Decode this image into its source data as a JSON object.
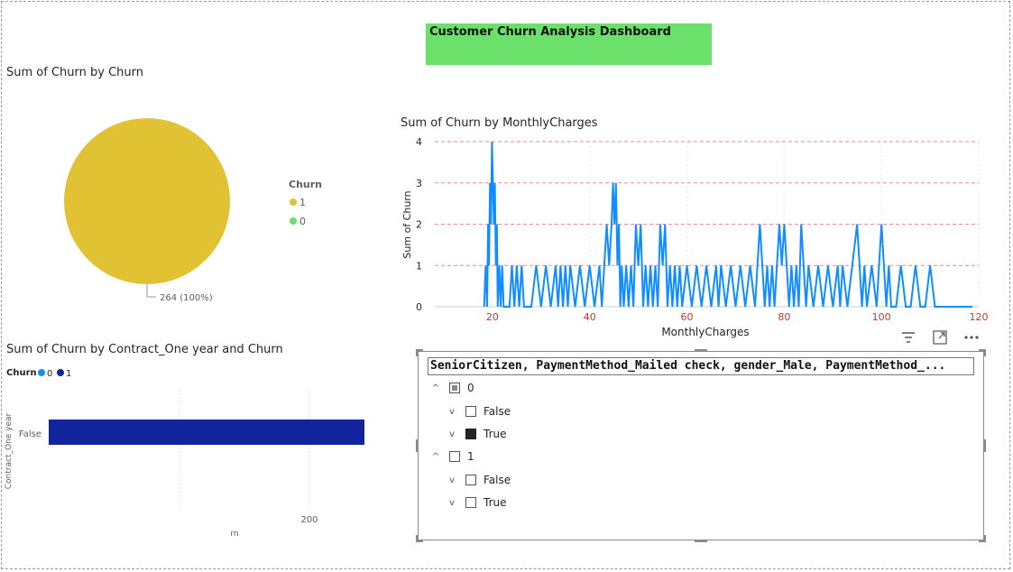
{
  "dashboard": {
    "title": "Customer Churn Analysis Dashboard",
    "title_bg": "#6be16b"
  },
  "pie": {
    "title": "Sum of Churn by Churn",
    "slice_label": "264 (100%)",
    "legend_title": "Churn",
    "legend": [
      {
        "label": "1",
        "color": "#e1c233"
      },
      {
        "label": "0",
        "color": "#6be16b"
      }
    ]
  },
  "line": {
    "title": "Sum of Churn by MonthlyCharges",
    "xlabel": "MonthlyCharges",
    "ylabel": "Sum of Churn",
    "color": "#118dff"
  },
  "bar": {
    "title": "Sum of Churn by Contract_One year and Churn",
    "legend_title": "Churn",
    "legend": [
      {
        "label": "0",
        "color": "#118dff"
      },
      {
        "label": "1",
        "color": "#12239e"
      }
    ],
    "category_axis_label": "Contract_One year",
    "value_axis_label": "rn",
    "tick_200": "200"
  },
  "slicer": {
    "header": "SeniorCitizen, PaymentMethod_Mailed check, gender_Male, PaymentMethod_...",
    "nodes": [
      {
        "label": "0",
        "level": 0,
        "expander": "^",
        "state": "partial"
      },
      {
        "label": "False",
        "level": 1,
        "expander": "v",
        "state": "unchecked"
      },
      {
        "label": "True",
        "level": 1,
        "expander": "v",
        "state": "checked"
      },
      {
        "label": "1",
        "level": 0,
        "expander": "^",
        "state": "unchecked"
      },
      {
        "label": "False",
        "level": 1,
        "expander": "v",
        "state": "unchecked"
      },
      {
        "label": "True",
        "level": 1,
        "expander": "v",
        "state": "unchecked"
      }
    ]
  },
  "chart_data": [
    {
      "type": "pie",
      "title": "Sum of Churn by Churn",
      "slices": [
        {
          "label": "1",
          "value": 264,
          "percent": 100,
          "color": "#e1c233"
        },
        {
          "label": "0",
          "value": 0,
          "percent": 0,
          "color": "#6be16b"
        }
      ],
      "legend_title": "Churn",
      "legend_position": "right"
    },
    {
      "type": "line",
      "title": "Sum of Churn by MonthlyCharges",
      "xlabel": "MonthlyCharges",
      "ylabel": "Sum of Churn",
      "xlim": [
        10,
        120
      ],
      "ylim": [
        0,
        4
      ],
      "x_ticks": [
        20,
        40,
        60,
        80,
        100,
        120
      ],
      "y_ticks": [
        0,
        1,
        2,
        3,
        4
      ],
      "grid": true,
      "series": [
        {
          "color": "#118dff",
          "points": [
            [
              18.3,
              0
            ],
            [
              18.6,
              1
            ],
            [
              18.9,
              0
            ],
            [
              19.1,
              2
            ],
            [
              19.3,
              1
            ],
            [
              19.5,
              3
            ],
            [
              19.7,
              2
            ],
            [
              19.9,
              4
            ],
            [
              20.1,
              3
            ],
            [
              20.3,
              2
            ],
            [
              20.5,
              3
            ],
            [
              20.7,
              1
            ],
            [
              20.9,
              2
            ],
            [
              21.1,
              0
            ],
            [
              21.4,
              1
            ],
            [
              21.7,
              0
            ],
            [
              22.0,
              1
            ],
            [
              22.3,
              0
            ],
            [
              23.5,
              0
            ],
            [
              24.0,
              1
            ],
            [
              24.5,
              0
            ],
            [
              25.0,
              1
            ],
            [
              25.5,
              0
            ],
            [
              26.0,
              1
            ],
            [
              26.5,
              0
            ],
            [
              28.0,
              0
            ],
            [
              29.0,
              1
            ],
            [
              30.0,
              0
            ],
            [
              31.0,
              1
            ],
            [
              32.0,
              0
            ],
            [
              33.0,
              1
            ],
            [
              33.5,
              0
            ],
            [
              34.0,
              1
            ],
            [
              34.5,
              0
            ],
            [
              35.0,
              1
            ],
            [
              35.5,
              0
            ],
            [
              36.0,
              1
            ],
            [
              37.0,
              0
            ],
            [
              38.0,
              1
            ],
            [
              39.0,
              0
            ],
            [
              40.0,
              1
            ],
            [
              41.0,
              0
            ],
            [
              42.0,
              1
            ],
            [
              42.5,
              0
            ],
            [
              43.0,
              1
            ],
            [
              43.5,
              2
            ],
            [
              44.0,
              1
            ],
            [
              44.5,
              2
            ],
            [
              44.8,
              3
            ],
            [
              45.1,
              2
            ],
            [
              45.4,
              3
            ],
            [
              45.7,
              1
            ],
            [
              46.0,
              2
            ],
            [
              46.3,
              0
            ],
            [
              46.6,
              1
            ],
            [
              47.0,
              0
            ],
            [
              47.5,
              1
            ],
            [
              48.0,
              0
            ],
            [
              48.5,
              1
            ],
            [
              49.0,
              0
            ],
            [
              49.5,
              2
            ],
            [
              50.0,
              1
            ],
            [
              50.5,
              2
            ],
            [
              51.0,
              0
            ],
            [
              51.5,
              1
            ],
            [
              52.0,
              0
            ],
            [
              52.5,
              1
            ],
            [
              53.0,
              0
            ],
            [
              53.5,
              1
            ],
            [
              54.0,
              0
            ],
            [
              54.5,
              2
            ],
            [
              55.0,
              1
            ],
            [
              55.5,
              2
            ],
            [
              56.0,
              0
            ],
            [
              56.5,
              1
            ],
            [
              57.0,
              0
            ],
            [
              57.5,
              1
            ],
            [
              58.0,
              0
            ],
            [
              58.5,
              1
            ],
            [
              59.0,
              0
            ],
            [
              60.0,
              1
            ],
            [
              61.0,
              0
            ],
            [
              62.0,
              1
            ],
            [
              63.0,
              0
            ],
            [
              64.0,
              1
            ],
            [
              65.0,
              0
            ],
            [
              66.0,
              1
            ],
            [
              66.5,
              0
            ],
            [
              67.0,
              1
            ],
            [
              68.0,
              0
            ],
            [
              69.0,
              1
            ],
            [
              70.0,
              0
            ],
            [
              71.0,
              1
            ],
            [
              72.0,
              0
            ],
            [
              73.0,
              1
            ],
            [
              74.0,
              0
            ],
            [
              74.5,
              1
            ],
            [
              75.0,
              2
            ],
            [
              75.5,
              1
            ],
            [
              76.0,
              0
            ],
            [
              76.5,
              1
            ],
            [
              77.0,
              0
            ],
            [
              77.5,
              1
            ],
            [
              78.0,
              0
            ],
            [
              78.5,
              1
            ],
            [
              79.0,
              2
            ],
            [
              79.5,
              1
            ],
            [
              80.0,
              2
            ],
            [
              80.5,
              1
            ],
            [
              81.0,
              0
            ],
            [
              81.5,
              1
            ],
            [
              82.0,
              0
            ],
            [
              82.5,
              1
            ],
            [
              83.0,
              0
            ],
            [
              83.5,
              2
            ],
            [
              84.0,
              1
            ],
            [
              84.5,
              0
            ],
            [
              85.0,
              1
            ],
            [
              86.0,
              0
            ],
            [
              87.0,
              1
            ],
            [
              88.0,
              0
            ],
            [
              89.0,
              1
            ],
            [
              90.0,
              0
            ],
            [
              91.0,
              1
            ],
            [
              91.5,
              0
            ],
            [
              92.0,
              1
            ],
            [
              93.0,
              0
            ],
            [
              94.0,
              1
            ],
            [
              95.0,
              2
            ],
            [
              95.5,
              1
            ],
            [
              96.0,
              0
            ],
            [
              96.5,
              1
            ],
            [
              97.0,
              0
            ],
            [
              98.0,
              1
            ],
            [
              99.0,
              0
            ],
            [
              99.5,
              1
            ],
            [
              100.0,
              2
            ],
            [
              100.5,
              1
            ],
            [
              101.0,
              0
            ],
            [
              101.5,
              1
            ],
            [
              102.0,
              0
            ],
            [
              103.0,
              0
            ],
            [
              104.0,
              1
            ],
            [
              105.0,
              0
            ],
            [
              106.0,
              0
            ],
            [
              107.0,
              1
            ],
            [
              108.0,
              0
            ],
            [
              109.0,
              0
            ],
            [
              110.0,
              1
            ],
            [
              111.0,
              0
            ],
            [
              114.0,
              0
            ],
            [
              118.7,
              0
            ]
          ]
        }
      ]
    },
    {
      "type": "bar",
      "orientation": "horizontal",
      "title": "Sum of Churn by Contract_One year and Churn",
      "categories": [
        "False"
      ],
      "series": [
        {
          "name": "1",
          "values": [
            264
          ],
          "color": "#12239e"
        }
      ],
      "xlim": [
        0,
        270
      ],
      "x_ticks": [
        200
      ],
      "legend_title": "Churn",
      "legend_position": "top-left"
    }
  ]
}
